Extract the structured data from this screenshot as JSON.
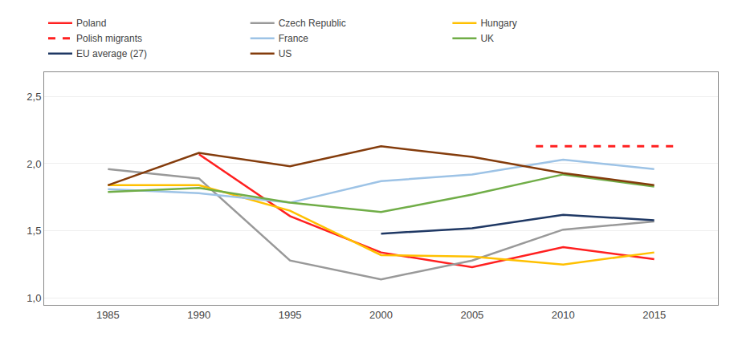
{
  "chart_data": {
    "type": "line",
    "x": [
      1985,
      1990,
      1995,
      2000,
      2005,
      2010,
      2015
    ],
    "series": [
      {
        "name": "Poland",
        "color": "#FF2020",
        "line_style": "solid",
        "values": [
          null,
          2.07,
          1.61,
          1.34,
          1.23,
          1.38,
          1.29
        ]
      },
      {
        "name": "Czech Republic",
        "color": "#999999",
        "line_style": "solid",
        "values": [
          1.96,
          1.89,
          1.28,
          1.14,
          1.28,
          1.51,
          1.57
        ]
      },
      {
        "name": "Hungary",
        "color": "#FFC000",
        "line_style": "solid",
        "values": [
          1.84,
          1.84,
          1.65,
          1.32,
          1.31,
          1.25,
          1.34
        ]
      },
      {
        "name": "Polish migrants",
        "color": "#FF2020",
        "line_style": "dashed",
        "x": [
          2008.5,
          2016.2
        ],
        "values": [
          2.13,
          2.13
        ]
      },
      {
        "name": "France",
        "color": "#9DC3E6",
        "line_style": "solid",
        "values": [
          1.81,
          1.78,
          1.71,
          1.87,
          1.92,
          2.03,
          1.96
        ]
      },
      {
        "name": "UK",
        "color": "#70AD47",
        "line_style": "solid",
        "values": [
          1.79,
          1.82,
          1.71,
          1.64,
          1.77,
          1.92,
          1.83
        ]
      },
      {
        "name": "EU average (27)",
        "color": "#1F3864",
        "line_style": "solid",
        "values": [
          null,
          null,
          null,
          1.48,
          1.52,
          1.62,
          1.58
        ]
      },
      {
        "name": "US",
        "color": "#843C0C",
        "line_style": "solid",
        "values": [
          1.84,
          2.08,
          1.98,
          2.13,
          2.05,
          1.93,
          1.84
        ]
      }
    ],
    "xlim": [
      1981.5,
      2018.5
    ],
    "xticks": [
      1985,
      1990,
      1995,
      2000,
      2005,
      2010,
      2015
    ],
    "ylim": [
      0.95,
      2.68
    ],
    "yticks": [
      {
        "value": 1.0,
        "label": "1,0"
      },
      {
        "value": 1.5,
        "label": "1,5"
      },
      {
        "value": 2.0,
        "label": "2,0"
      },
      {
        "value": 2.5,
        "label": "2,5"
      }
    ],
    "grid": "y",
    "legend": "upper left"
  }
}
